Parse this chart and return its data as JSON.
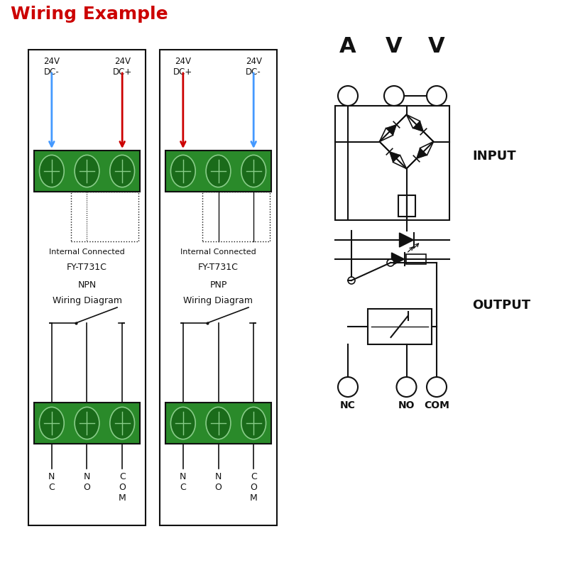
{
  "title": "Wiring Example",
  "title_color": "#CC0000",
  "title_fontsize": 18,
  "bg_color": "#ffffff",
  "text_color": "#111111",
  "arrow_blue": "#4499FF",
  "arrow_red": "#CC0000",
  "green_dark": "#1a6b1a",
  "green_mid": "#2a8a2a",
  "green_light": "#aaddaa",
  "npn_labels": [
    "24V\nDC-",
    "24V\nDC+"
  ],
  "pnp_labels": [
    "24V\nDC+",
    "24V\nDC-"
  ],
  "npn_title": "FY-T731C",
  "npn_type": "NPN",
  "npn_diagram": "Wiring Diagram",
  "pnp_title": "FY-T731C",
  "pnp_type": "PNP",
  "pnp_diagram": "Wiring Diagram",
  "internal_connected": "Internal Connected",
  "input_label": "INPUT",
  "output_label": "OUTPUT",
  "avv": [
    "A",
    "V",
    "V"
  ],
  "nc_no_com": [
    "NC",
    "NO",
    "COM"
  ],
  "bottom_labels_npn": [
    "N\nC",
    "N\nO",
    "C\nO\nM"
  ],
  "bottom_labels_pnp": [
    "N\nC",
    "N\nO",
    "C\nO\nM"
  ]
}
